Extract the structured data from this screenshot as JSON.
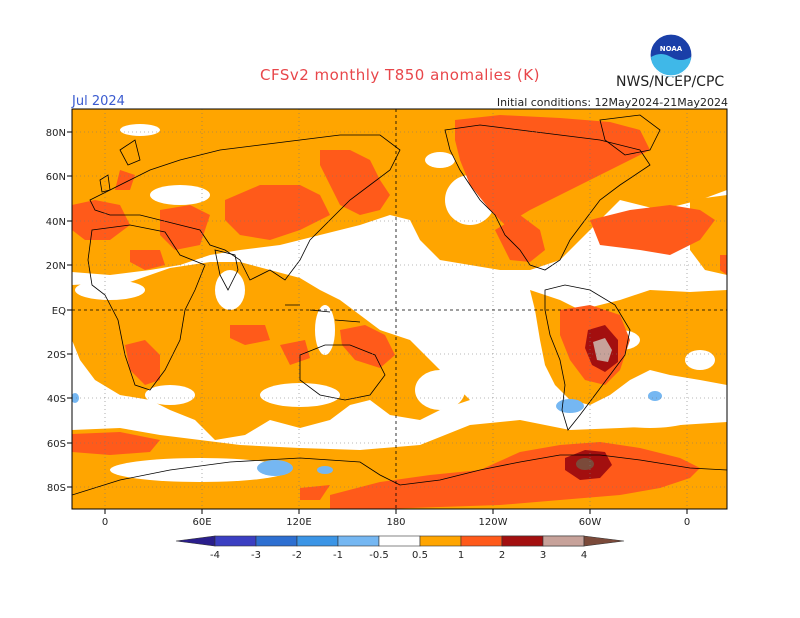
{
  "header": {
    "title": "CFSv2 monthly T850 anomalies (K)",
    "org": "NWS/NCEP/CPC",
    "logo_text": "NOAA",
    "month": "Jul 2024",
    "initial_conditions": "Initial conditions: 12May2024-21May2024"
  },
  "axes": {
    "lat_labels": [
      "80N",
      "60N",
      "40N",
      "20N",
      "EQ",
      "20S",
      "40S",
      "60S",
      "80S"
    ],
    "lon_labels": [
      "0",
      "60E",
      "120E",
      "180",
      "120W",
      "60W",
      "0"
    ]
  },
  "colorbar": {
    "labels": [
      "-4",
      "-3",
      "-2",
      "-1",
      "-0.5",
      "0.5",
      "1",
      "2",
      "3",
      "4"
    ],
    "colors": [
      "#2a1e8c",
      "#3b3fc2",
      "#2d6fd1",
      "#3b95e6",
      "#75b7f2",
      "#ffffff",
      "#ffa500",
      "#ff5a1a",
      "#e02a10",
      "#a30f0f",
      "#c7a29a",
      "#7b4a3a"
    ]
  },
  "chart_data": {
    "type": "heatmap",
    "title": "CFSv2 monthly T850 anomalies (K)",
    "subtitle": "Jul 2024",
    "xlabel": "",
    "ylabel": "",
    "x_ticks": [
      "0",
      "60E",
      "120E",
      "180",
      "120W",
      "60W",
      "0"
    ],
    "y_ticks": [
      "80N",
      "60N",
      "40N",
      "20N",
      "EQ",
      "20S",
      "40S",
      "60S",
      "80S"
    ],
    "color_levels": [
      -4,
      -3,
      -2,
      -1,
      -0.5,
      0.5,
      1,
      2,
      3,
      4
    ],
    "grid": true
  }
}
